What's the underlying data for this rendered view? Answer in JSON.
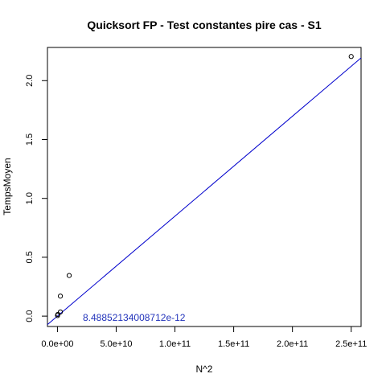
{
  "chart_data": {
    "type": "scatter",
    "title": "Quicksort FP - Test constantes pire cas - S1",
    "xlabel": "N^2",
    "ylabel": "TempsMoyen",
    "xlim": [
      -8500000000.0,
      258400000000.0
    ],
    "ylim": [
      -0.088,
      2.282
    ],
    "x_ticks": [
      0,
      50000000000.0,
      100000000000.0,
      150000000000.0,
      200000000000.0,
      250000000000.0
    ],
    "x_tick_labels": [
      "0.0e+00",
      "5.0e+10",
      "1.0e+11",
      "1.5e+11",
      "2.0e+11",
      "2.5e+11"
    ],
    "y_ticks": [
      0,
      0.5,
      1,
      1.5,
      2
    ],
    "y_tick_labels": [
      "0.0",
      "0.5",
      "1.0",
      "1.5",
      "2.0"
    ],
    "grid": false,
    "series": [
      {
        "x": [
          100000000.0,
          400000000.0,
          2500000000.0,
          2500000000.0,
          10000000000.0,
          250000000000.0
        ],
        "y": [
          0.005,
          0.015,
          0.035,
          0.17,
          0.345,
          2.205
        ],
        "marker": "open-circle",
        "color": "#000000"
      }
    ],
    "fit_line": {
      "slope": 8.48852134008712e-12,
      "intercept": 0,
      "color": "#0000cc"
    },
    "annotation": {
      "text": "8.48852134008712e-12",
      "color": "#2233bb"
    }
  }
}
